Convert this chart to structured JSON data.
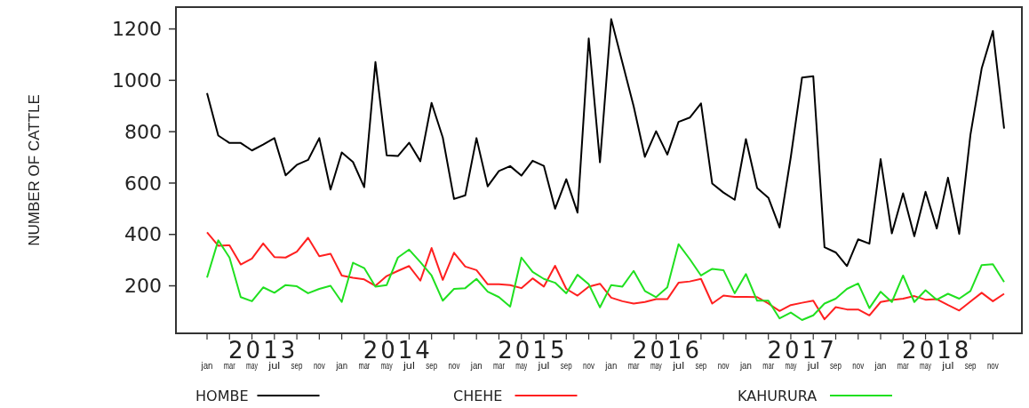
{
  "chart_data": {
    "type": "line",
    "ylabel": "NUMBER OF CATTLE",
    "categories": [
      "jan",
      null,
      "mar",
      null,
      "may",
      null,
      "jul",
      null,
      "sep",
      null,
      "nov",
      null,
      "jan",
      null,
      "mar",
      null,
      "may",
      null,
      "jul",
      null,
      "sep",
      null,
      "nov",
      null,
      "jan",
      null,
      "mar",
      null,
      "may",
      null,
      "jul",
      null,
      "sep",
      null,
      "nov",
      null,
      "jan",
      null,
      "mar",
      null,
      "may",
      null,
      "jul",
      null,
      "sep",
      null,
      "nov",
      null,
      "jan",
      null,
      "mar",
      null,
      "may",
      null,
      "jul",
      null,
      "sep",
      null,
      "nov",
      null,
      "jan",
      null,
      "mar",
      null,
      "may",
      null,
      "jul",
      null,
      "sep",
      null,
      "nov",
      null
    ],
    "annotations": [
      "2013",
      "2014",
      "2015",
      "2016",
      "2017",
      "2018"
    ],
    "ylim": [
      15,
      1285
    ],
    "yticks": [
      200,
      400,
      600,
      800,
      1000,
      1200
    ],
    "grid": false,
    "legend": "bottom",
    "marker": "none",
    "line_style": "solid",
    "series": [
      {
        "name": "HOMBE",
        "color": "#000000",
        "values": [
          950,
          785,
          756,
          756,
          727,
          750,
          775,
          630,
          671,
          690,
          775,
          575,
          719,
          682,
          584,
          1071,
          708,
          705,
          757,
          685,
          912,
          777,
          538,
          552,
          775,
          587,
          647,
          666,
          629,
          687,
          667,
          500,
          615,
          485,
          1163,
          681,
          1238,
          1069,
          899,
          702,
          802,
          711,
          838,
          855,
          910,
          598,
          563,
          535,
          771,
          581,
          543,
          427,
          702,
          1011,
          1016,
          350,
          330,
          277,
          381,
          364,
          693,
          404,
          560,
          393,
          566,
          423,
          621,
          402,
          788,
          1046,
          1192,
          812
        ]
      },
      {
        "name": "CHEHE",
        "color": "#ff2020",
        "values": [
          408,
          356,
          358,
          283,
          306,
          365,
          312,
          310,
          333,
          387,
          315,
          325,
          240,
          231,
          225,
          200,
          238,
          258,
          277,
          220,
          347,
          223,
          329,
          275,
          261,
          206,
          206,
          203,
          191,
          229,
          197,
          278,
          188,
          162,
          197,
          208,
          154,
          140,
          131,
          137,
          148,
          148,
          212,
          217,
          227,
          131,
          162,
          157,
          157,
          156,
          131,
          102,
          125,
          134,
          142,
          70,
          117,
          108,
          108,
          85,
          137,
          145,
          150,
          160,
          146,
          148,
          125,
          104,
          139,
          173,
          140,
          169
        ]
      },
      {
        "name": "KAHURURA",
        "color": "#20e020",
        "values": [
          232,
          377,
          310,
          156,
          140,
          194,
          173,
          203,
          198,
          171,
          188,
          200,
          137,
          290,
          269,
          197,
          203,
          310,
          341,
          292,
          240,
          142,
          188,
          191,
          227,
          177,
          156,
          119,
          310,
          254,
          227,
          212,
          171,
          243,
          206,
          116,
          203,
          197,
          258,
          180,
          156,
          194,
          362,
          304,
          240,
          266,
          261,
          171,
          246,
          142,
          142,
          73,
          96,
          67,
          85,
          131,
          150,
          188,
          209,
          113,
          177,
          137,
          240,
          137,
          183,
          146,
          169,
          150,
          180,
          281,
          284,
          215
        ]
      }
    ]
  }
}
